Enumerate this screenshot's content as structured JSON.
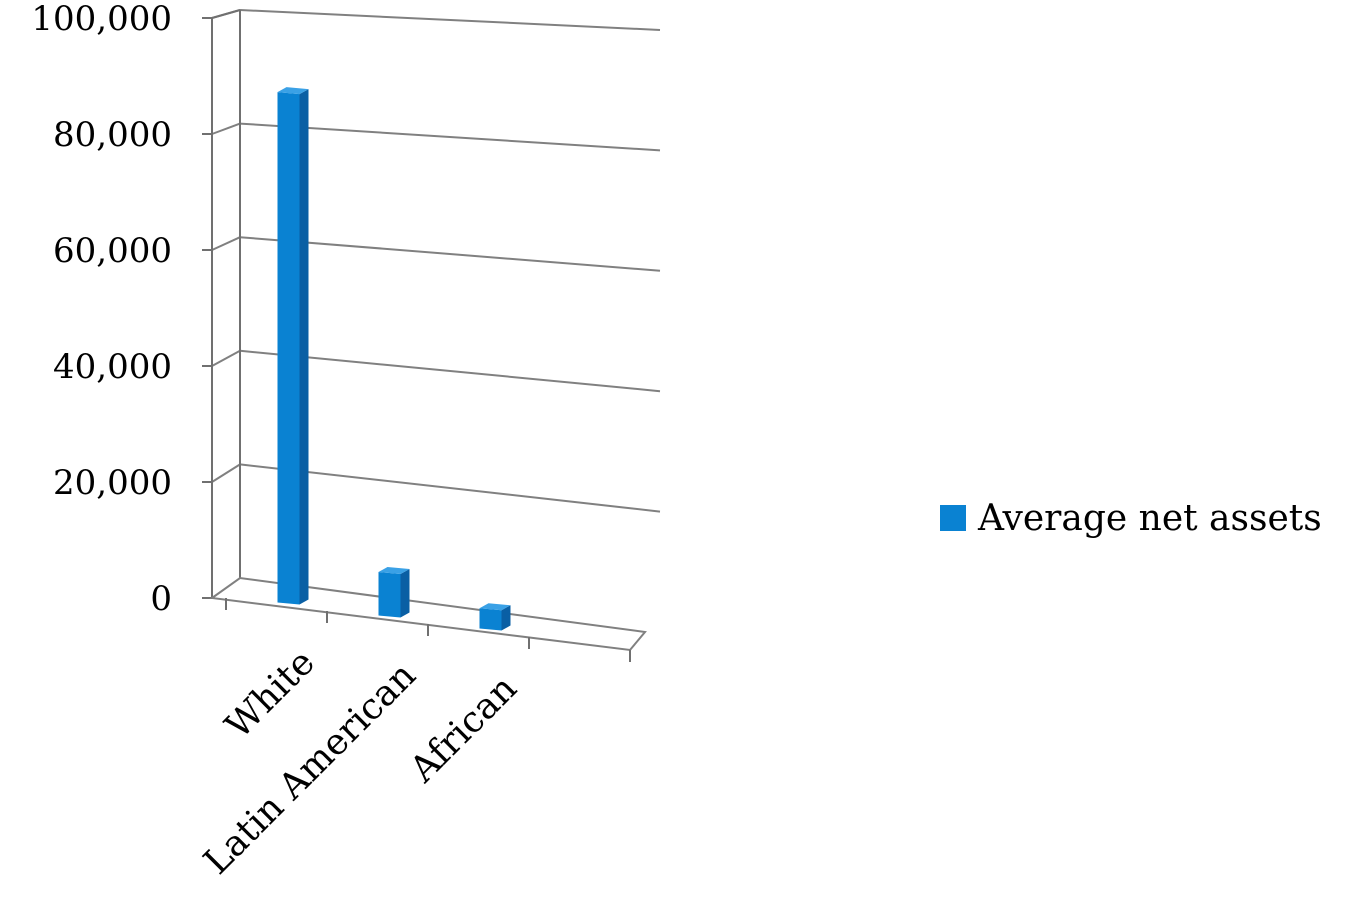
{
  "chart_data": {
    "type": "bar",
    "style": "3d-column",
    "categories": [
      "White",
      "Latin American",
      "African"
    ],
    "series": [
      {
        "name": "Average net assets",
        "values": [
          88000,
          7500,
          3500
        ]
      }
    ],
    "yticks": [
      "0",
      "20,000",
      "40,000",
      "60,000",
      "80,000",
      "100,000"
    ],
    "ylim": [
      0,
      100000
    ],
    "grid": true,
    "legend": "right",
    "colors": {
      "bar_front": "#0a82d2",
      "bar_side": "#0a5fa4",
      "bar_top": "#3aa1e6",
      "grid": "#808080",
      "axis": "#707070"
    }
  }
}
